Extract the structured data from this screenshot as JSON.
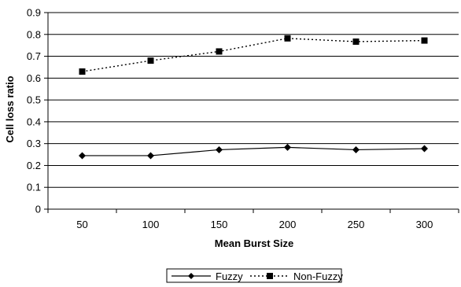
{
  "chart_data": {
    "type": "line",
    "title": "",
    "xlabel": "Mean Burst Size",
    "ylabel": "Cell loss ratio",
    "categories": [
      "50",
      "100",
      "150",
      "200",
      "250",
      "300"
    ],
    "ylim": [
      0,
      0.9
    ],
    "yticks": [
      "0",
      "0.1",
      "0.2",
      "0.3",
      "0.4",
      "0.5",
      "0.6",
      "0.7",
      "0.8",
      "0.9"
    ],
    "grid": "horizontal",
    "legend_position": "bottom",
    "series": [
      {
        "name": "Fuzzy",
        "values": [
          0.245,
          0.245,
          0.272,
          0.283,
          0.272,
          0.277
        ],
        "line_style": "solid",
        "marker": "diamond",
        "color": "#000000"
      },
      {
        "name": "Non-Fuzzy",
        "values": [
          0.63,
          0.68,
          0.722,
          0.782,
          0.767,
          0.772
        ],
        "line_style": "dotted",
        "marker": "square",
        "color": "#000000"
      }
    ]
  }
}
